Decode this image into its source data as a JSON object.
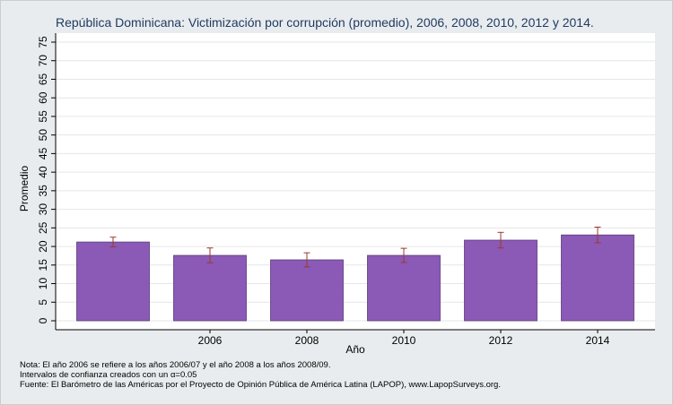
{
  "chart_data": {
    "type": "bar",
    "title": "República Dominicana: Victimización por corrupción (promedio), 2006, 2008, 2010, 2012 y 2014.",
    "xlabel": "Año",
    "ylabel": "Promedio",
    "categories": [
      "",
      "2006",
      "2008",
      "2010",
      "2012",
      "2014"
    ],
    "values": [
      21.2,
      17.6,
      16.4,
      17.6,
      21.7,
      23.1
    ],
    "ci_low": [
      19.9,
      15.6,
      14.5,
      15.7,
      19.6,
      21.0
    ],
    "ci_high": [
      22.5,
      19.6,
      18.3,
      19.5,
      23.8,
      25.2
    ],
    "ylim": [
      0,
      75
    ],
    "yticks": [
      0,
      5,
      10,
      15,
      20,
      25,
      30,
      35,
      40,
      45,
      50,
      55,
      60,
      65,
      70,
      75
    ],
    "grid": true,
    "bar_color": "#8b59b6",
    "errorbar_color": "#9b3a2c"
  },
  "notes": {
    "line1": "Nota: El año 2006 se refiere a los años 2006/07 y el año 2008 a los años 2008/09.",
    "line2": "Intervalos de confianza creados con un α=0.05",
    "line3": "Fuente: El Barómetro de las Américas por el Proyecto de Opinión Pública de América Latina (LAPOP), www.LapopSurveys.org."
  }
}
